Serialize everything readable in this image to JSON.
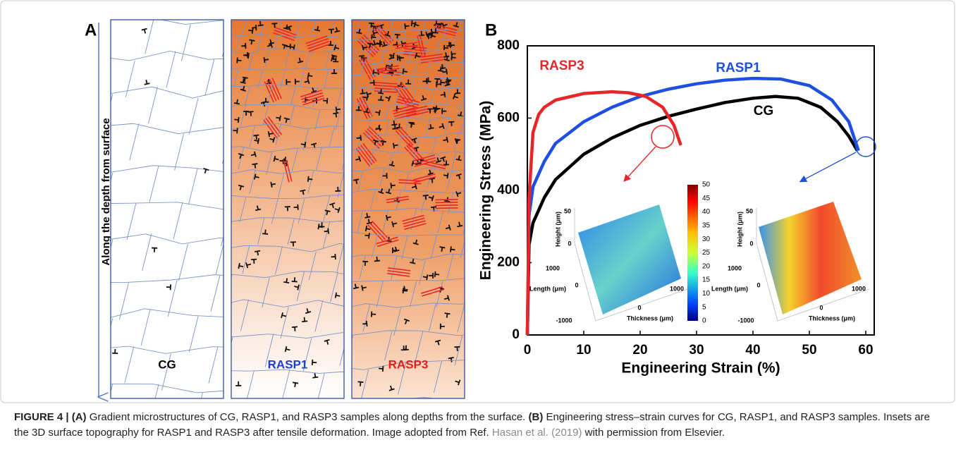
{
  "panel_a": {
    "letter": "A",
    "axis_label": "Along the depth from surface",
    "columns": [
      "CG",
      "RASP1",
      "RASP3"
    ]
  },
  "chart_data": {
    "type": "line",
    "letter": "B",
    "xlabel": "Engineering Strain (%)",
    "ylabel": "Engineering Stress (MPa)",
    "xlim": [
      0,
      61.5
    ],
    "ylim": [
      0,
      800
    ],
    "xticks": [
      0,
      10,
      20,
      30,
      40,
      50,
      60
    ],
    "yticks": [
      0,
      200,
      400,
      600,
      800
    ],
    "series": [
      {
        "name": "CG",
        "color": "#000000",
        "x": [
          0,
          0.3,
          1,
          3,
          5,
          10,
          15,
          20,
          25,
          30,
          35,
          40,
          44,
          48,
          52,
          55,
          57,
          58.5
        ],
        "values": [
          0,
          250,
          310,
          380,
          430,
          500,
          545,
          580,
          605,
          625,
          643,
          655,
          660,
          655,
          630,
          590,
          550,
          510
        ]
      },
      {
        "name": "RASP1",
        "color": "#1f4fe0",
        "x": [
          0,
          0.3,
          1,
          3,
          5,
          10,
          15,
          20,
          25,
          30,
          35,
          40,
          45,
          50,
          54,
          57,
          58.7
        ],
        "values": [
          0,
          330,
          410,
          480,
          530,
          590,
          630,
          660,
          680,
          695,
          705,
          710,
          708,
          690,
          650,
          590,
          510
        ]
      },
      {
        "name": "RASP3",
        "color": "#e8262a",
        "x": [
          0,
          0.3,
          1,
          2,
          3,
          5,
          10,
          15,
          18,
          21,
          24,
          26,
          27.2
        ],
        "values": [
          0,
          380,
          560,
          610,
          630,
          650,
          668,
          673,
          670,
          660,
          630,
          580,
          525
        ]
      }
    ]
  },
  "insets": {
    "colorbar_ticks": [
      50,
      45,
      40,
      35,
      30,
      25,
      20,
      15,
      10,
      5,
      0
    ],
    "height_label": "Height (μm)",
    "height_ticks": [
      50,
      0
    ],
    "length_label": "Length (μm)",
    "length_ticks": [
      1000,
      0
    ],
    "thickness_label": "Thickness (μm)",
    "thickness_ticks": [
      -1000,
      0,
      1000
    ]
  },
  "caption": {
    "figure": "FIGURE 4 |",
    "a": "(A)",
    "text_a": "Gradient microstructures of CG, RASP1, and RASP3 samples along depths from the surface.",
    "b": "(B)",
    "text_b": "Engineering stress–strain curves for CG, RASP1, and RASP3 samples. Insets are the 3D surface topography for RASP1 and RASP3 after tensile deformation. Image adopted from Ref.",
    "ref": "Hasan et al. (2019)",
    "text_end": "with permission from Elsevier."
  }
}
